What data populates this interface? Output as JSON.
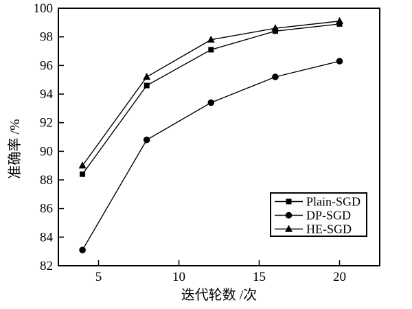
{
  "figure": {
    "background": "#ffffff",
    "line_color": "#000000"
  },
  "chart_data": {
    "type": "line",
    "title": "",
    "xlabel": "迭代轮数 /次",
    "ylabel": "准确率 /%",
    "x": [
      4,
      8,
      12,
      16,
      20
    ],
    "series": [
      {
        "name": "Plain-SGD",
        "marker": "square",
        "color": "#000000",
        "values": [
          88.4,
          94.6,
          97.1,
          98.4,
          98.9
        ]
      },
      {
        "name": "DP-SGD",
        "marker": "circle",
        "color": "#000000",
        "values": [
          83.1,
          90.8,
          93.4,
          95.2,
          96.3
        ]
      },
      {
        "name": "HE-SGD",
        "marker": "triangle",
        "color": "#000000",
        "values": [
          89.0,
          95.2,
          97.8,
          98.6,
          99.1
        ]
      }
    ],
    "xlim": [
      2.5,
      22.5
    ],
    "ylim": [
      82,
      100
    ],
    "xticks": [
      5,
      10,
      15,
      20
    ],
    "yticks": [
      82,
      84,
      86,
      88,
      90,
      92,
      94,
      96,
      98,
      100
    ],
    "grid": false,
    "legend_position": "inside-lower-right"
  }
}
